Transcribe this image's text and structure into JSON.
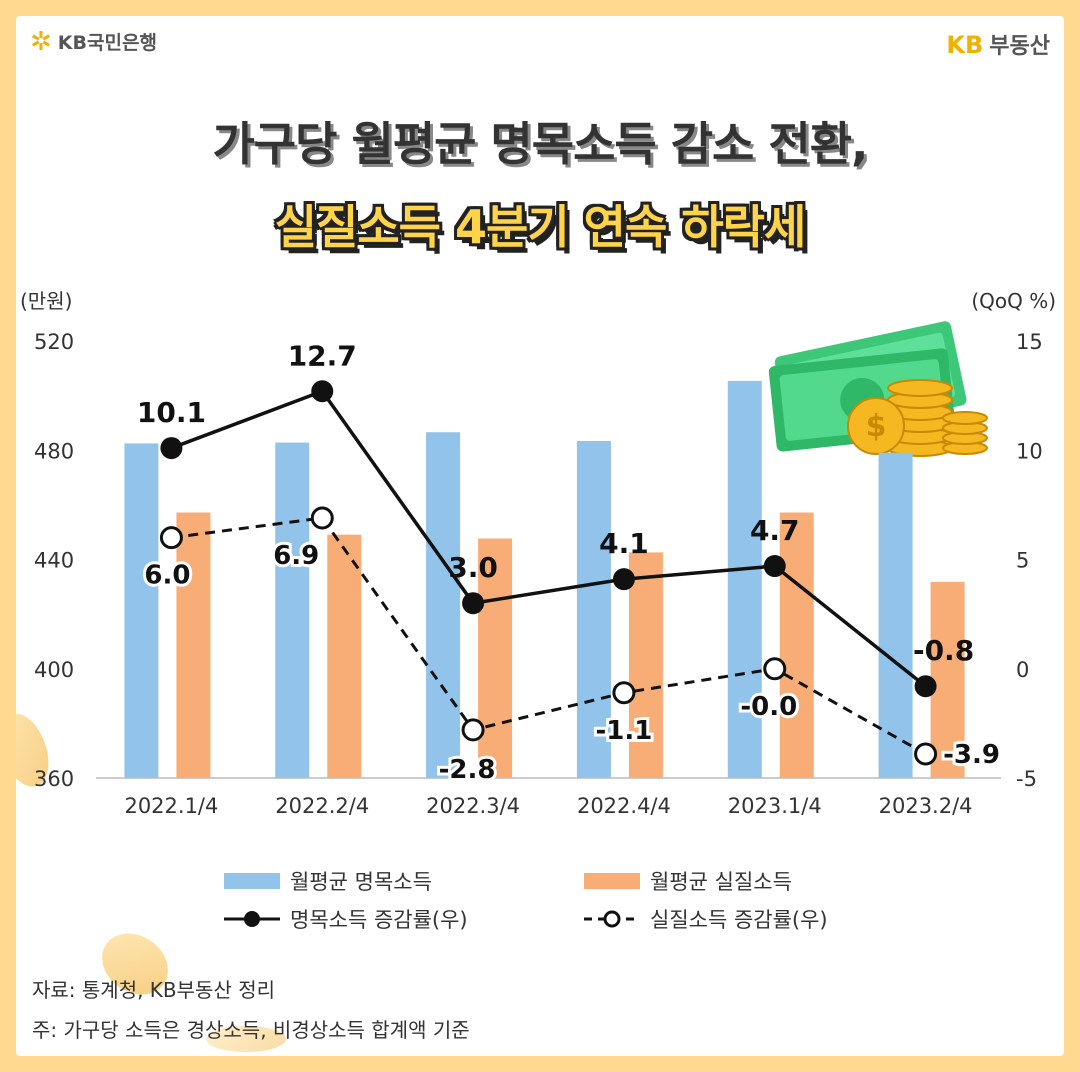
{
  "brand": {
    "left_icon": "sparkle-star-icon",
    "left_name": "KB국민은행",
    "right_kb": "KB",
    "right_name": "부동산"
  },
  "title_line1": "가구당 월평균 명목소득 감소 전환,",
  "title_line2": "실질소득 4분기 연속 하락세",
  "chart_data": {
    "type": "bar",
    "categories": [
      "2022.1/4",
      "2022.2/4",
      "2022.3/4",
      "2022.4/4",
      "2023.1/4",
      "2023.2/4"
    ],
    "left_axis": {
      "unit_label": "(만원)",
      "range": [
        360,
        520
      ],
      "ticks": [
        520,
        480,
        440,
        400,
        360
      ]
    },
    "right_axis": {
      "unit_label": "(QoQ %)",
      "range": [
        -5,
        15
      ],
      "ticks": [
        15,
        10,
        5,
        0,
        -5
      ]
    },
    "series": [
      {
        "name": "월평균 명목소득",
        "type": "bar",
        "axis": "left",
        "color": "#92c3ea",
        "values": [
          482.5,
          482.8,
          486.6,
          483.4,
          505.4,
          479.1
        ]
      },
      {
        "name": "월평균 실질소득",
        "type": "bar",
        "axis": "left",
        "color": "#f9ad76",
        "values": [
          457.2,
          449.1,
          447.7,
          442.6,
          457.2,
          431.8
        ]
      },
      {
        "name": "명목소득 증감률(우)",
        "type": "line",
        "axis": "right",
        "color": "#111111",
        "marker": "filled-circle",
        "values": [
          10.1,
          12.7,
          3.0,
          4.1,
          4.7,
          -0.8
        ],
        "labels": [
          "10.1",
          "12.7",
          "3.0",
          "4.1",
          "4.7",
          "-0.8"
        ]
      },
      {
        "name": "실질소득 증감률(우)",
        "type": "line",
        "axis": "right",
        "color": "#111111",
        "marker": "open-circle",
        "dashed": true,
        "values": [
          6.0,
          6.9,
          -2.8,
          -1.1,
          -0.0,
          -3.9
        ],
        "labels": [
          "6.0",
          "6.9",
          "-2.8",
          "-1.1",
          "-0.0",
          "-3.9"
        ]
      }
    ],
    "grid": false,
    "legend_placement": "bottom"
  },
  "footnotes": {
    "source": "자료: 통계청, KB부동산 정리",
    "note": "주: 가구당 소득은 경상소득, 비경상소득 합계액 기준"
  },
  "decoration_icon": "money-coins-icon"
}
